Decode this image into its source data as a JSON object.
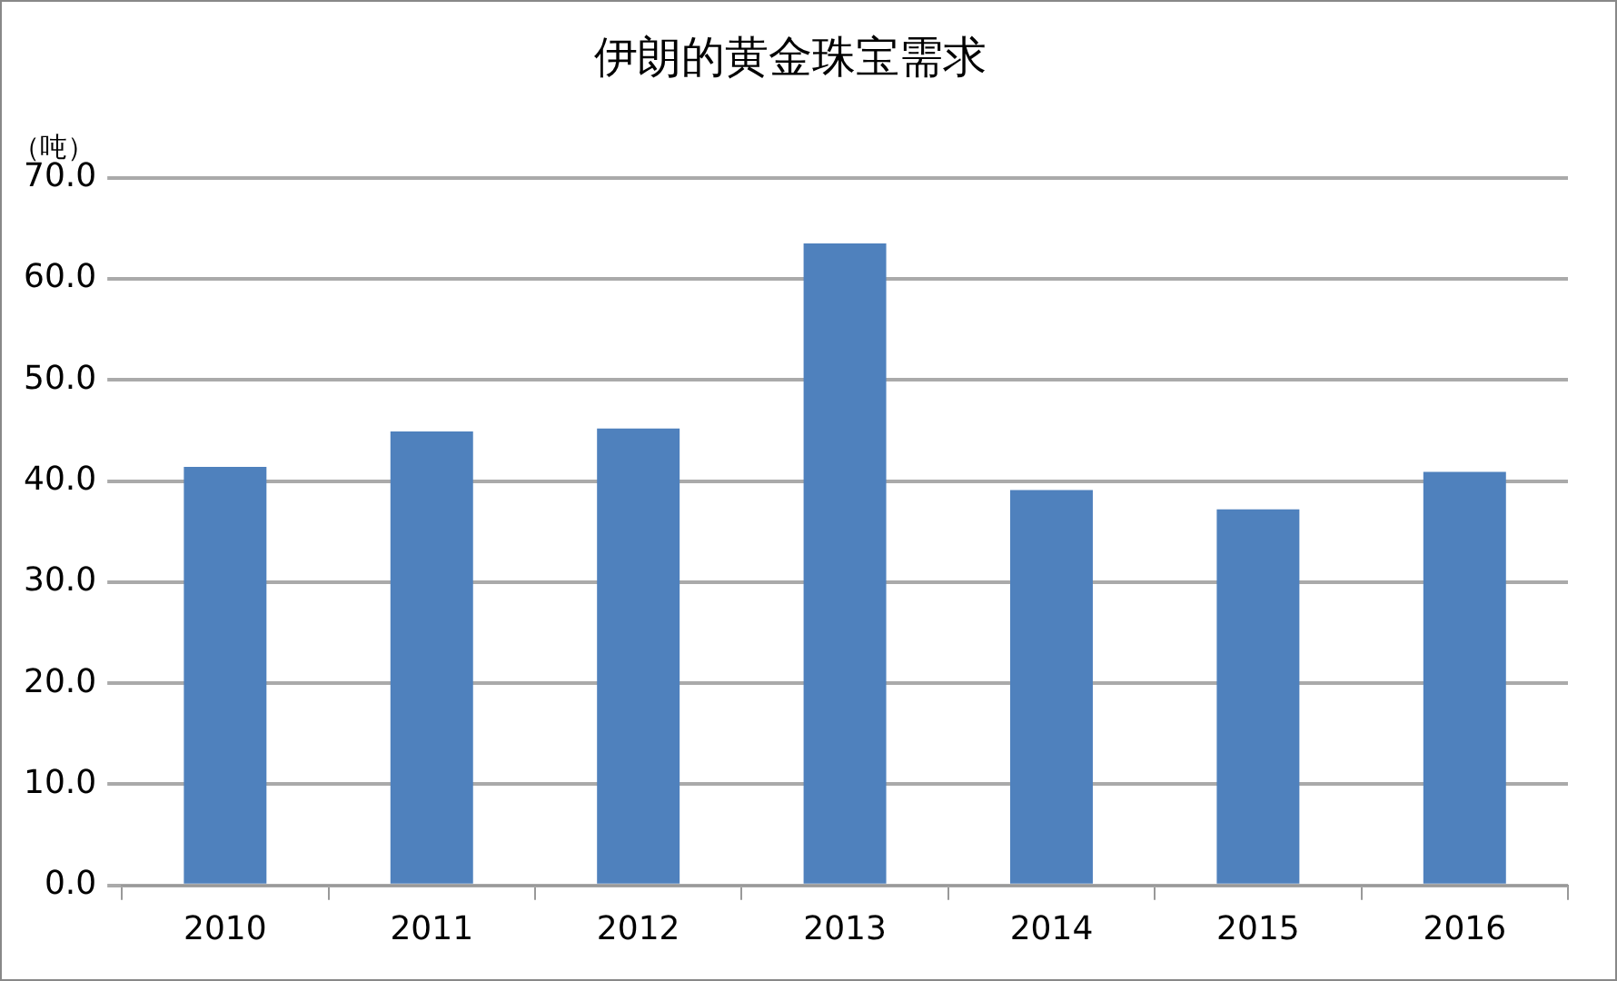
{
  "chart_data": {
    "type": "bar",
    "title": "伊朗的黄金珠宝需求",
    "ylabel": "（吨）",
    "categories": [
      "2010",
      "2011",
      "2012",
      "2013",
      "2014",
      "2015",
      "2016"
    ],
    "values": [
      41.4,
      44.9,
      45.2,
      63.5,
      39.1,
      37.2,
      40.9
    ],
    "color": "#4f81bd",
    "ylim": [
      0,
      70
    ],
    "yticks": [
      {
        "value": 0,
        "label": "0.0"
      },
      {
        "value": 10,
        "label": "10.0"
      },
      {
        "value": 20,
        "label": "20.0"
      },
      {
        "value": 30,
        "label": "30.0"
      },
      {
        "value": 40,
        "label": "40.0"
      },
      {
        "value": 50,
        "label": "50.0"
      },
      {
        "value": 60,
        "label": "60.0"
      },
      {
        "value": 70,
        "label": "70.0"
      }
    ],
    "grid": "y"
  }
}
